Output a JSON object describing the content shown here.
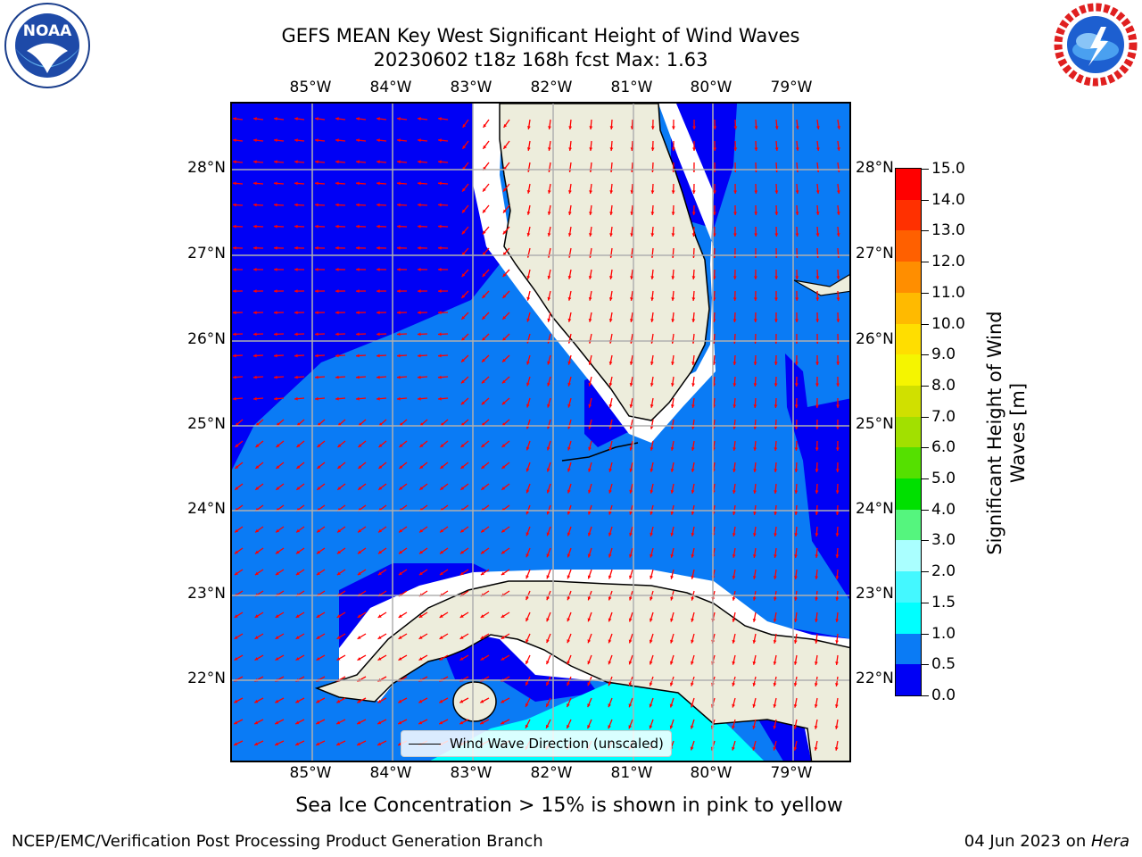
{
  "title_line1": "GEFS MEAN Key West Significant Height of Wind Waves",
  "title_line2": "20230602 t18z 168h fcst   Max: 1.63",
  "logos": {
    "left": "noaa-logo",
    "right": "national-weather-service-logo"
  },
  "map": {
    "lon_ticks": [
      "85°W",
      "84°W",
      "83°W",
      "82°W",
      "81°W",
      "80°W",
      "79°W"
    ],
    "lat_ticks": [
      "28°N",
      "27°N",
      "26°N",
      "25°N",
      "24°N",
      "23°N",
      "22°N"
    ],
    "colors": {
      "land": "#ededdc",
      "ocean_0_0_5": "#0000f5",
      "ocean_0_5_1_0": "#0a7bf5",
      "ocean_1_0_1_5": "#00ffff",
      "arrow": "#ff0000",
      "grid": "#b0b0b0"
    },
    "legend_label": "Wind Wave Direction (unscaled)"
  },
  "colorbar": {
    "label": "Significant Height of Wind Waves [m]",
    "ticks": [
      "0.0",
      "0.5",
      "1.0",
      "1.5",
      "2.0",
      "3.0",
      "4.0",
      "5.0",
      "6.0",
      "7.0",
      "8.0",
      "9.0",
      "10.0",
      "11.0",
      "12.0",
      "13.0",
      "14.0",
      "15.0"
    ],
    "colors": [
      "#0000f5",
      "#0a7bf5",
      "#00ffff",
      "#44f8ff",
      "#aaffff",
      "#55f57e",
      "#00e000",
      "#55e000",
      "#a2e000",
      "#d0e000",
      "#f5f500",
      "#ffde00",
      "#ffba00",
      "#ff8e00",
      "#ff6000",
      "#ff3000",
      "#ff0000"
    ]
  },
  "subtitle": "Sea Ice Concentration > 15% is shown in pink to yellow",
  "footer_left": "NCEP/EMC/Verification Post Processing Product Generation Branch",
  "footer_right_date": "04 Jun 2023 on ",
  "footer_right_machine": "Hera"
}
